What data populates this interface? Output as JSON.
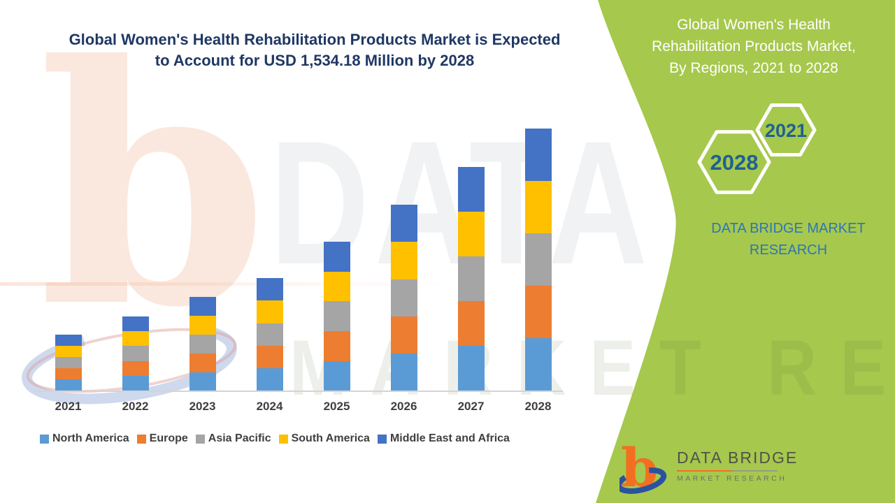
{
  "chart": {
    "title_lines": [
      "Global Women's Health Rehabilitation Products Market is Expected",
      "to Account for USD 1,534.18 Million by 2028"
    ]
  },
  "chart_data": {
    "type": "bar",
    "stacked": true,
    "title": "Global Women's Health Rehabilitation Products Market is Expected to Account for USD 1,534.18 Million by 2028",
    "unit": "USD Million",
    "categories": [
      "2021",
      "2022",
      "2023",
      "2024",
      "2025",
      "2026",
      "2027",
      "2028"
    ],
    "totals": [
      330,
      437,
      549,
      661,
      873,
      1090,
      1312,
      1534.18
    ],
    "series": [
      {
        "name": "North America",
        "color": "#5B9BD5",
        "values": [
          66,
          87.4,
          109.8,
          132.2,
          174.6,
          218,
          262.4,
          306.84
        ]
      },
      {
        "name": "Europe",
        "color": "#ED7D31",
        "values": [
          66,
          87.4,
          109.8,
          132.2,
          174.6,
          218,
          262.4,
          306.84
        ]
      },
      {
        "name": "Asia Pacific",
        "color": "#A5A5A5",
        "values": [
          66,
          87.4,
          109.8,
          132.2,
          174.6,
          218,
          262.4,
          306.84
        ]
      },
      {
        "name": "South America",
        "color": "#FFC000",
        "values": [
          66,
          87.4,
          109.8,
          132.2,
          174.6,
          218,
          262.4,
          306.84
        ]
      },
      {
        "name": "Middle East and Africa",
        "color": "#4472C4",
        "values": [
          66,
          87.4,
          109.8,
          132.2,
          174.6,
          218,
          262.4,
          306.84
        ]
      }
    ],
    "ylim": [
      0,
      1600
    ],
    "grid": false,
    "legend_position": "bottom"
  },
  "side_panel": {
    "bg_color": "#A6C84D",
    "title_lines": [
      "Global Women's Health",
      "Rehabilitation Products Market,",
      "By Regions, 2021 to 2028"
    ],
    "hexagons": [
      {
        "year": "2028"
      },
      {
        "year": "2021"
      }
    ],
    "brand_lines": [
      "DATA BRIDGE MARKET",
      "RESEARCH"
    ]
  },
  "footer_logo": {
    "title": "DATA BRIDGE",
    "subtitle": "MARKET RESEARCH"
  },
  "watermark": {
    "line1": "DATA BRIDGE",
    "line2": "MARKET RESEARCH"
  }
}
